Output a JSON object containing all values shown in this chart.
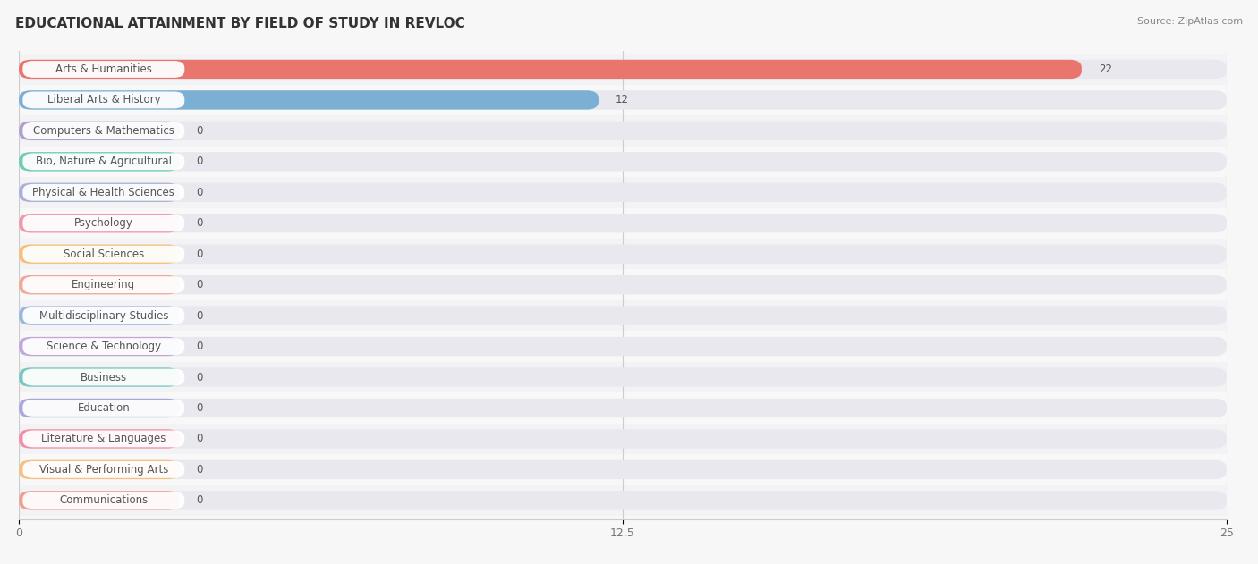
{
  "title": "EDUCATIONAL ATTAINMENT BY FIELD OF STUDY IN REVLOC",
  "source": "Source: ZipAtlas.com",
  "categories": [
    "Arts & Humanities",
    "Liberal Arts & History",
    "Computers & Mathematics",
    "Bio, Nature & Agricultural",
    "Physical & Health Sciences",
    "Psychology",
    "Social Sciences",
    "Engineering",
    "Multidisciplinary Studies",
    "Science & Technology",
    "Business",
    "Education",
    "Literature & Languages",
    "Visual & Performing Arts",
    "Communications"
  ],
  "values": [
    22,
    12,
    0,
    0,
    0,
    0,
    0,
    0,
    0,
    0,
    0,
    0,
    0,
    0,
    0
  ],
  "bar_colors": [
    "#E8766D",
    "#7BAFD4",
    "#B39FCC",
    "#6DCBB8",
    "#A8B2D8",
    "#F098AC",
    "#F5C07A",
    "#F0A898",
    "#9AB8DC",
    "#C0A8D8",
    "#78C8C0",
    "#A8A8DC",
    "#F090A8",
    "#F5C080",
    "#F0A090"
  ],
  "xlim": [
    0,
    25
  ],
  "xticks": [
    0,
    12.5,
    25
  ],
  "background_color": "#f7f7f7",
  "bar_background_color": "#e8e8ee",
  "row_bg_odd": "#f0f0f5",
  "row_bg_even": "#fafafa",
  "title_fontsize": 11,
  "label_fontsize": 8.5,
  "value_fontsize": 8.5
}
